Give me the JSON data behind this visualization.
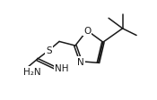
{
  "bg_color": "#ffffff",
  "line_color": "#1a1a1a",
  "line_width": 1.1,
  "figsize": [
    1.75,
    1.13
  ],
  "dpi": 100,
  "xlim": [
    0,
    1.75
  ],
  "ylim": [
    0,
    1.13
  ]
}
